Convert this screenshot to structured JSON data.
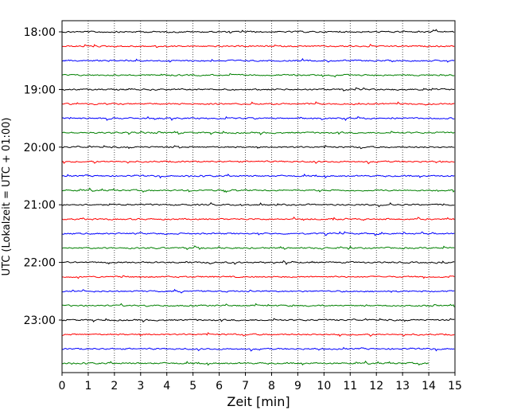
{
  "chart_data": {
    "type": "line",
    "title": "",
    "xlabel": "Zeit  [min]",
    "ylabel": "UTC (Lokalzeit = UTC + 01:00)",
    "xlim": [
      0,
      15
    ],
    "x_ticks": [
      "0",
      "1",
      "2",
      "3",
      "4",
      "5",
      "6",
      "7",
      "8",
      "9",
      "10",
      "11",
      "12",
      "13",
      "14",
      "15"
    ],
    "y_tick_labels": [
      "18:00",
      "19:00",
      "20:00",
      "21:00",
      "22:00",
      "23:00"
    ],
    "grid": "vertical dotted",
    "trace_interval_min": 15,
    "trace_colors": [
      "#000000",
      "#ff0000",
      "#0000ff",
      "#008000"
    ],
    "traces": [
      {
        "start": "18:00",
        "end_min": 15
      },
      {
        "start": "18:15",
        "end_min": 15
      },
      {
        "start": "18:30",
        "end_min": 15
      },
      {
        "start": "18:45",
        "end_min": 15
      },
      {
        "start": "19:00",
        "end_min": 15
      },
      {
        "start": "19:15",
        "end_min": 15
      },
      {
        "start": "19:30",
        "end_min": 15
      },
      {
        "start": "19:45",
        "end_min": 15
      },
      {
        "start": "20:00",
        "end_min": 15
      },
      {
        "start": "20:15",
        "end_min": 15
      },
      {
        "start": "20:30",
        "end_min": 15
      },
      {
        "start": "20:45",
        "end_min": 15
      },
      {
        "start": "21:00",
        "end_min": 15
      },
      {
        "start": "21:15",
        "end_min": 15
      },
      {
        "start": "21:30",
        "end_min": 15
      },
      {
        "start": "21:45",
        "end_min": 15
      },
      {
        "start": "22:00",
        "end_min": 15
      },
      {
        "start": "22:15",
        "end_min": 15
      },
      {
        "start": "22:30",
        "end_min": 15
      },
      {
        "start": "22:45",
        "end_min": 15
      },
      {
        "start": "23:00",
        "end_min": 15
      },
      {
        "start": "23:15",
        "end_min": 15
      },
      {
        "start": "23:30",
        "end_min": 15
      },
      {
        "start": "23:45",
        "end_min": 14
      }
    ]
  }
}
